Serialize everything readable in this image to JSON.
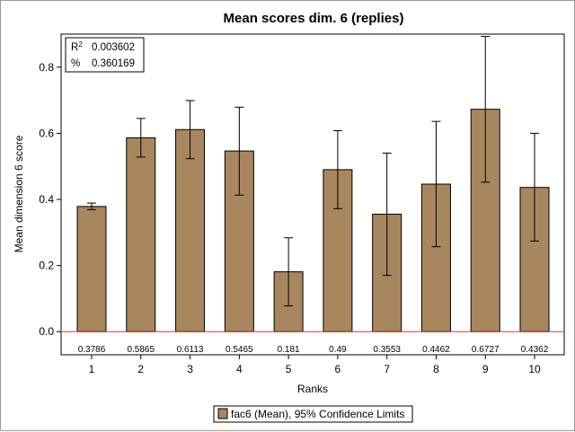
{
  "chart_data": {
    "type": "bar",
    "title": "Mean scores dim. 6 (replies)",
    "xlabel": "Ranks",
    "ylabel": "Mean dimension 6 score",
    "categories": [
      "1",
      "2",
      "3",
      "4",
      "5",
      "6",
      "7",
      "8",
      "9",
      "10"
    ],
    "series": [
      {
        "name": "fac6 (Mean), 95% Confidence Limits",
        "values": [
          0.3786,
          0.5865,
          0.6113,
          0.5465,
          0.181,
          0.49,
          0.3553,
          0.4462,
          0.6727,
          0.4362
        ],
        "ci_lower": [
          0.369,
          0.528,
          0.523,
          0.413,
          0.078,
          0.372,
          0.17,
          0.257,
          0.452,
          0.274
        ],
        "ci_upper": [
          0.389,
          0.645,
          0.699,
          0.679,
          0.284,
          0.608,
          0.54,
          0.636,
          0.893,
          0.6
        ]
      }
    ],
    "data_labels": [
      "0.3786",
      "0.5865",
      "0.6113",
      "0.5465",
      "0.181",
      "0.49",
      "0.3553",
      "0.4462",
      "0.6727",
      "0.4362"
    ],
    "ylim": [
      -0.07,
      0.9
    ],
    "yticks": [
      0.0,
      0.2,
      0.4,
      0.6,
      0.8
    ],
    "ytick_labels": [
      "0.0",
      "0.2",
      "0.4",
      "0.6",
      "0.8"
    ],
    "reference_line": {
      "y": 0,
      "color": "#e8302c"
    },
    "stats": [
      {
        "label": "R",
        "superscript": "2",
        "value": "0.003602"
      },
      {
        "label": "%",
        "superscript": "",
        "value": "0.360169"
      }
    ],
    "bar_color": "#a8865e",
    "grid": false,
    "legend_position": "bottom"
  }
}
